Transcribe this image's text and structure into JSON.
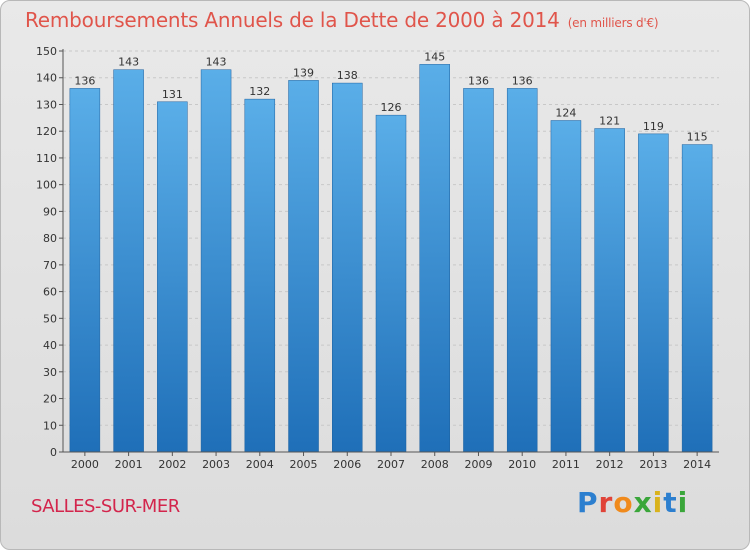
{
  "chart_data": {
    "type": "bar",
    "title": "Remboursements Annuels de la Dette de 2000 à 2014",
    "unit_label": "(en milliers d'€)",
    "categories": [
      "2000",
      "2001",
      "2002",
      "2003",
      "2004",
      "2005",
      "2006",
      "2007",
      "2008",
      "2009",
      "2010",
      "2011",
      "2012",
      "2013",
      "2014"
    ],
    "values": [
      136,
      143,
      131,
      143,
      132,
      139,
      138,
      126,
      145,
      136,
      136,
      124,
      121,
      119,
      115
    ],
    "ylim": [
      0,
      150
    ],
    "yticks": [
      0,
      10,
      20,
      30,
      40,
      50,
      60,
      70,
      80,
      90,
      100,
      110,
      120,
      130,
      140,
      150
    ],
    "grid": true,
    "bar_color_top": "#5aaee8",
    "bar_color_bottom": "#1f6fb8"
  },
  "footer": {
    "commune": "SALLES-SUR-MER",
    "logo": "Proxiti"
  }
}
